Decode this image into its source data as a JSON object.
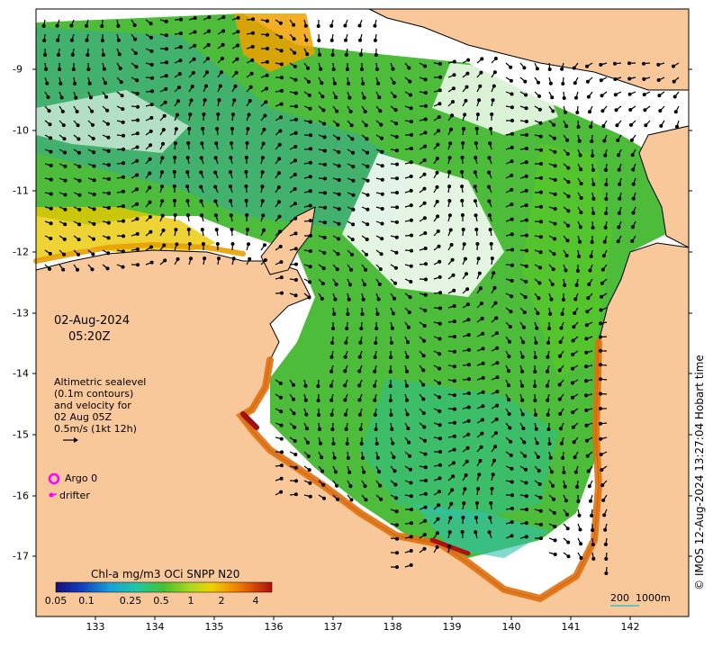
{
  "datetime": {
    "date": "02-Aug-2024",
    "time": "05:20Z"
  },
  "legend_text": {
    "line1": "Altimetric sealevel",
    "line2": "(0.1m contours)",
    "line3": "and velocity for",
    "line4": "02 Aug 05Z",
    "line5": "0.5m/s (1kt 12h)"
  },
  "markers": {
    "argo": "Argo 0",
    "drifter": "drifter",
    "argo_color": "#ff00ff",
    "drifter_color": "#ff00ff"
  },
  "colorbar": {
    "title": "Chl-a mg/m3 OCi SNPP N20",
    "ticks": [
      "0.05",
      "0.1",
      "0.25",
      "0.5",
      "1",
      "2",
      "4"
    ]
  },
  "scale_bar": {
    "label_a": "200",
    "label_b": "1000m"
  },
  "credit": "© IMOS 12-Aug-2024 13:27:04 Hobart time",
  "axes": {
    "x_ticks": [
      "133",
      "134",
      "135",
      "136",
      "137",
      "138",
      "139",
      "140",
      "141",
      "142"
    ],
    "y_ticks": [
      "-9",
      "-10",
      "-11",
      "-12",
      "-13",
      "-14",
      "-15",
      "-16",
      "-17"
    ]
  },
  "colors": {
    "land": "#f9c89a",
    "no_data": "#ffffff",
    "coast": "#000000"
  }
}
